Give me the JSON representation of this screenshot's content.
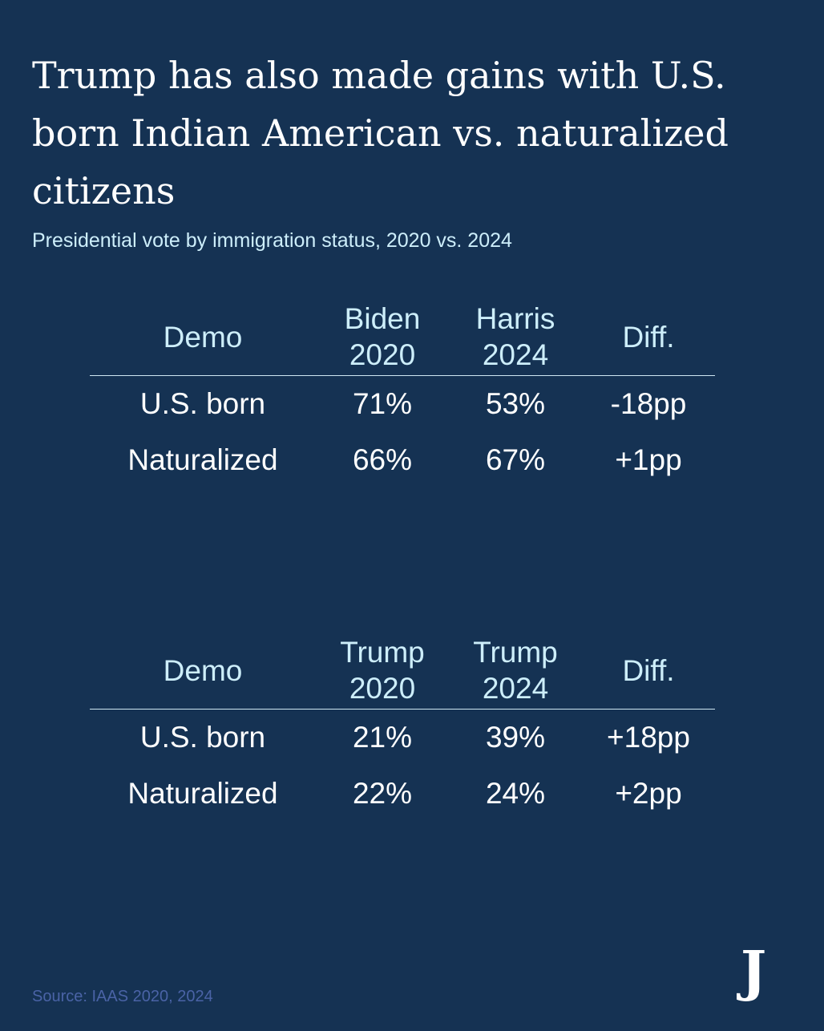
{
  "title": "Trump has also made gains with U.S. born Indian American vs. naturalized citizens",
  "subtitle": "Presidential vote by immigration status, 2020 vs. 2024",
  "source": "Source: IAAS 2020, 2024",
  "logo_text": "J",
  "colors": {
    "background": "#153253",
    "header_text": "#cdeefa",
    "body_text": "#ffffff",
    "rule": "#cfe8f3",
    "source_text": "#4a63a6"
  },
  "chart_data": [
    {
      "type": "table",
      "columns": [
        "Demo",
        "Biden 2020",
        "Harris 2024",
        "Diff."
      ],
      "rows": [
        [
          "U.S. born",
          "71%",
          "53%",
          "-18pp"
        ],
        [
          "Naturalized",
          "66%",
          "67%",
          "+1pp"
        ]
      ]
    },
    {
      "type": "table",
      "columns": [
        "Demo",
        "Trump 2020",
        "Trump 2024",
        "Diff."
      ],
      "rows": [
        [
          "U.S. born",
          "21%",
          "39%",
          "+18pp"
        ],
        [
          "Naturalized",
          "22%",
          "24%",
          "+2pp"
        ]
      ]
    }
  ]
}
